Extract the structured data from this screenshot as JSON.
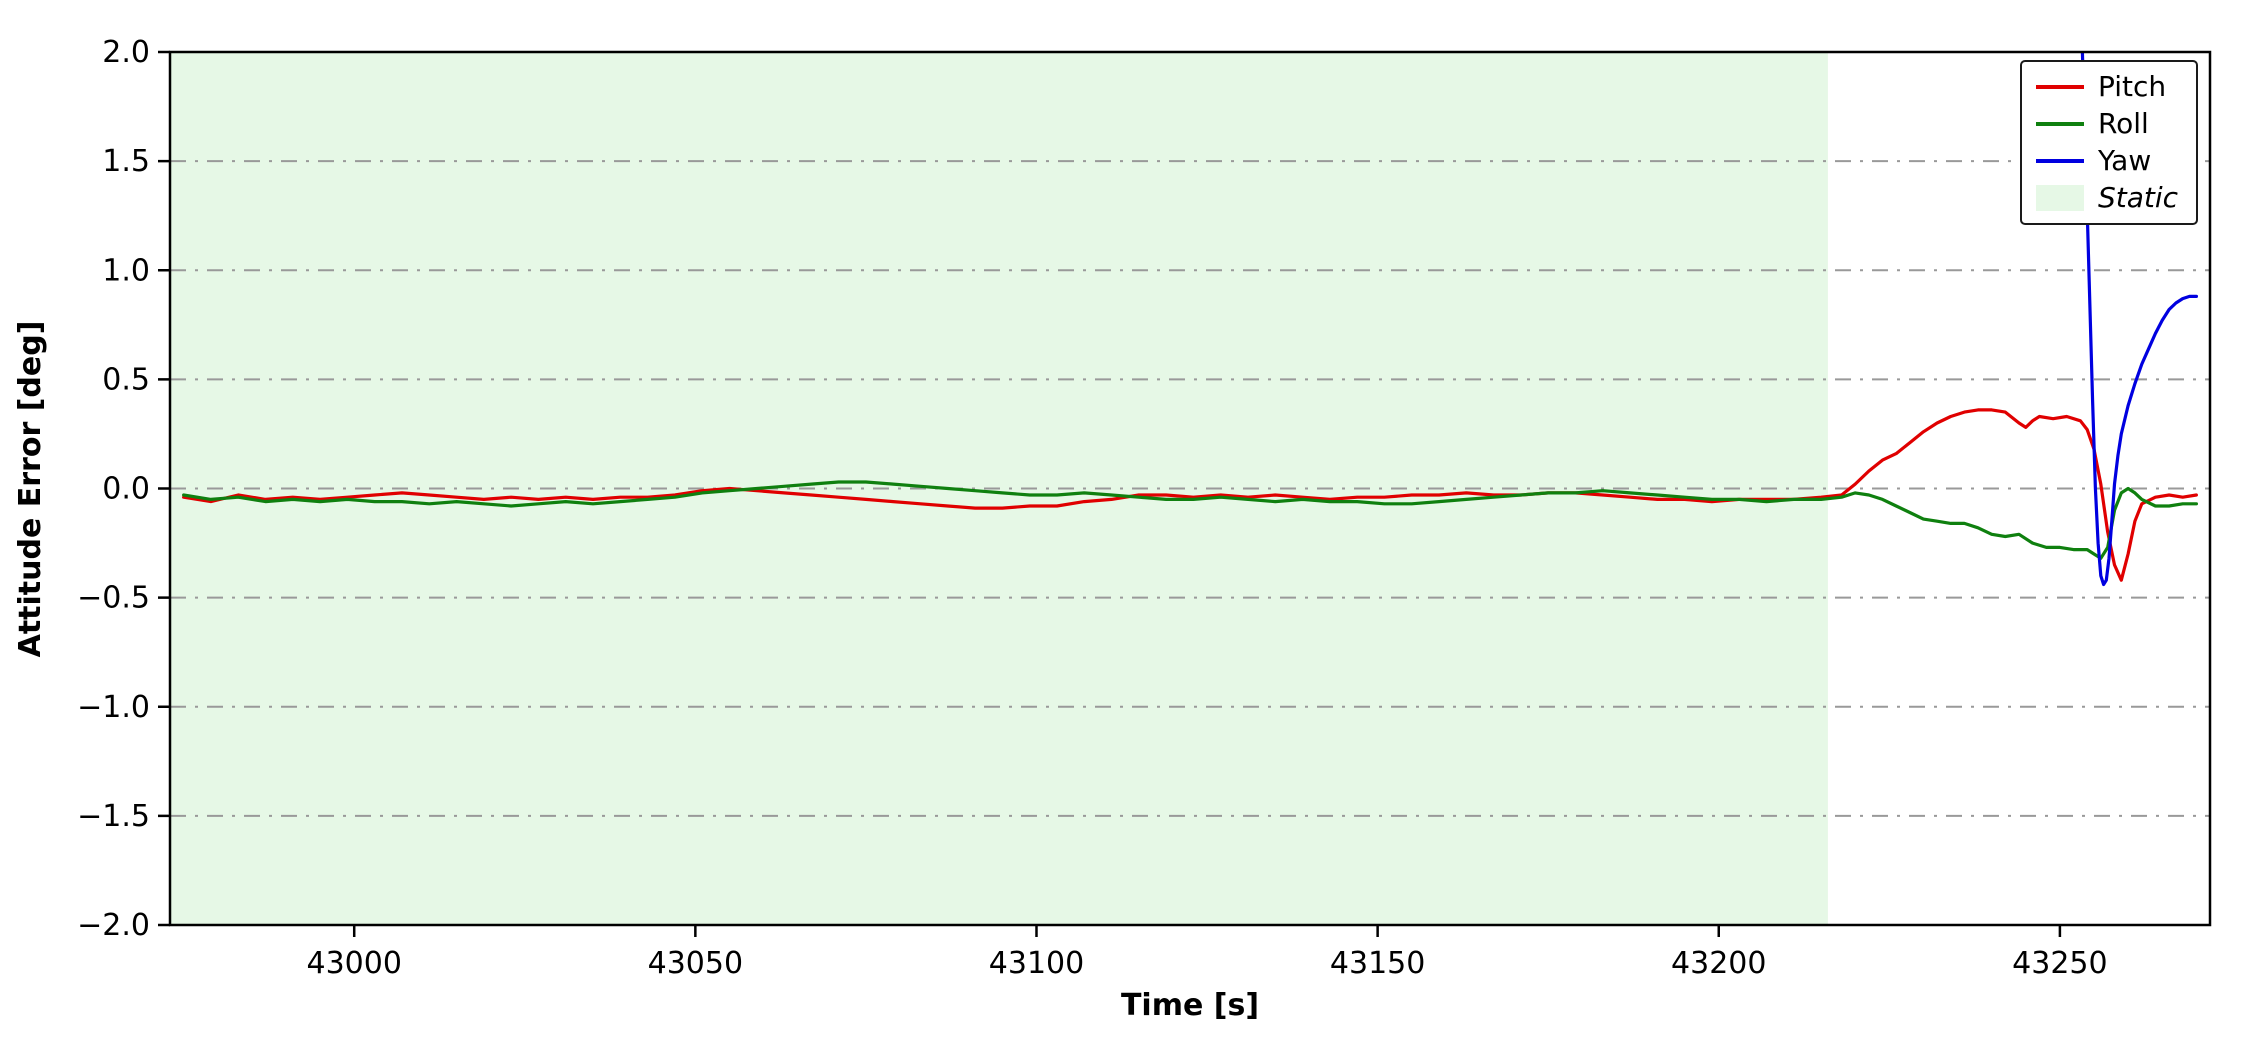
{
  "chart_data": {
    "type": "line",
    "title": "",
    "xlabel": "Time [s]",
    "ylabel": "Attitude Error [deg]",
    "xlim": [
      42973,
      43272
    ],
    "ylim": [
      -2.0,
      2.0
    ],
    "xticks": [
      43000,
      43050,
      43100,
      43150,
      43200,
      43250
    ],
    "xtick_labels": [
      "43000",
      "43050",
      "43100",
      "43150",
      "43200",
      "43250"
    ],
    "yticks": [
      -2.0,
      -1.5,
      -1.0,
      -0.5,
      0.0,
      0.5,
      1.0,
      1.5,
      2.0
    ],
    "ytick_labels": [
      "−2.0",
      "−1.5",
      "−1.0",
      "−0.5",
      "0.0",
      "0.5",
      "1.0",
      "1.5",
      "2.0"
    ],
    "grid": {
      "on": true,
      "axis": "y",
      "style": "dash-dot",
      "color": "#999999"
    },
    "legend": {
      "position": "upper right"
    },
    "frame_color": "#000000",
    "static_region": {
      "label": "Static",
      "x_start": 42973,
      "x_end": 43216,
      "color": "#e6f8e6"
    },
    "series": [
      {
        "name": "Pitch",
        "color": "#e00000",
        "x": [
          42975,
          42979,
          42983,
          42987,
          42991,
          42995,
          42999,
          43003,
          43007,
          43011,
          43015,
          43019,
          43023,
          43027,
          43031,
          43035,
          43039,
          43043,
          43047,
          43051,
          43055,
          43059,
          43063,
          43067,
          43071,
          43075,
          43079,
          43083,
          43087,
          43091,
          43095,
          43099,
          43103,
          43107,
          43111,
          43115,
          43119,
          43123,
          43127,
          43131,
          43135,
          43139,
          43143,
          43147,
          43151,
          43155,
          43159,
          43163,
          43167,
          43171,
          43175,
          43179,
          43183,
          43187,
          43191,
          43195,
          43199,
          43203,
          43207,
          43211,
          43215,
          43218,
          43220,
          43222,
          43224,
          43226,
          43228,
          43230,
          43232,
          43234,
          43236,
          43238,
          43240,
          43242,
          43244,
          43245,
          43246,
          43247,
          43249,
          43251,
          43253,
          43254,
          43255,
          43256,
          43257,
          43258,
          43259,
          43260,
          43261,
          43262,
          43264,
          43266,
          43268,
          43270
        ],
        "y": [
          -0.04,
          -0.06,
          -0.03,
          -0.05,
          -0.04,
          -0.05,
          -0.04,
          -0.03,
          -0.02,
          -0.03,
          -0.04,
          -0.05,
          -0.04,
          -0.05,
          -0.04,
          -0.05,
          -0.04,
          -0.04,
          -0.03,
          -0.01,
          0.0,
          -0.01,
          -0.02,
          -0.03,
          -0.04,
          -0.05,
          -0.06,
          -0.07,
          -0.08,
          -0.09,
          -0.09,
          -0.08,
          -0.08,
          -0.06,
          -0.05,
          -0.03,
          -0.03,
          -0.04,
          -0.03,
          -0.04,
          -0.03,
          -0.04,
          -0.05,
          -0.04,
          -0.04,
          -0.03,
          -0.03,
          -0.02,
          -0.03,
          -0.03,
          -0.02,
          -0.02,
          -0.03,
          -0.04,
          -0.05,
          -0.05,
          -0.06,
          -0.05,
          -0.05,
          -0.05,
          -0.04,
          -0.03,
          0.02,
          0.08,
          0.13,
          0.16,
          0.21,
          0.26,
          0.3,
          0.33,
          0.35,
          0.36,
          0.36,
          0.35,
          0.3,
          0.28,
          0.31,
          0.33,
          0.32,
          0.33,
          0.31,
          0.27,
          0.18,
          0.02,
          -0.2,
          -0.35,
          -0.42,
          -0.3,
          -0.15,
          -0.07,
          -0.04,
          -0.03,
          -0.04,
          -0.03
        ]
      },
      {
        "name": "Roll",
        "color": "#0f800f",
        "x": [
          42975,
          42979,
          42983,
          42987,
          42991,
          42995,
          42999,
          43003,
          43007,
          43011,
          43015,
          43019,
          43023,
          43027,
          43031,
          43035,
          43039,
          43043,
          43047,
          43051,
          43055,
          43059,
          43063,
          43067,
          43071,
          43075,
          43079,
          43083,
          43087,
          43091,
          43095,
          43099,
          43103,
          43107,
          43111,
          43115,
          43119,
          43123,
          43127,
          43131,
          43135,
          43139,
          43143,
          43147,
          43151,
          43155,
          43159,
          43163,
          43167,
          43171,
          43175,
          43179,
          43183,
          43187,
          43191,
          43195,
          43199,
          43203,
          43207,
          43211,
          43215,
          43218,
          43220,
          43222,
          43224,
          43226,
          43228,
          43230,
          43232,
          43234,
          43236,
          43238,
          43240,
          43242,
          43244,
          43246,
          43248,
          43250,
          43252,
          43254,
          43255,
          43256,
          43257,
          43258,
          43259,
          43260,
          43261,
          43262,
          43264,
          43266,
          43268,
          43270
        ],
        "y": [
          -0.03,
          -0.05,
          -0.04,
          -0.06,
          -0.05,
          -0.06,
          -0.05,
          -0.06,
          -0.06,
          -0.07,
          -0.06,
          -0.07,
          -0.08,
          -0.07,
          -0.06,
          -0.07,
          -0.06,
          -0.05,
          -0.04,
          -0.02,
          -0.01,
          0.0,
          0.01,
          0.02,
          0.03,
          0.03,
          0.02,
          0.01,
          0.0,
          -0.01,
          -0.02,
          -0.03,
          -0.03,
          -0.02,
          -0.03,
          -0.04,
          -0.05,
          -0.05,
          -0.04,
          -0.05,
          -0.06,
          -0.05,
          -0.06,
          -0.06,
          -0.07,
          -0.07,
          -0.06,
          -0.05,
          -0.04,
          -0.03,
          -0.02,
          -0.02,
          -0.01,
          -0.02,
          -0.03,
          -0.04,
          -0.05,
          -0.05,
          -0.06,
          -0.05,
          -0.05,
          -0.04,
          -0.02,
          -0.03,
          -0.05,
          -0.08,
          -0.11,
          -0.14,
          -0.15,
          -0.16,
          -0.16,
          -0.18,
          -0.21,
          -0.22,
          -0.21,
          -0.25,
          -0.27,
          -0.27,
          -0.28,
          -0.28,
          -0.3,
          -0.32,
          -0.27,
          -0.1,
          -0.02,
          0.0,
          -0.02,
          -0.05,
          -0.08,
          -0.08,
          -0.07,
          -0.07
        ]
      },
      {
        "name": "Yaw",
        "color": "#0000e0",
        "x": [
          43252.6,
          43253.2,
          43253.8,
          43254.3,
          43254.8,
          43255.2,
          43255.6,
          43256.0,
          43256.4,
          43256.8,
          43257.2,
          43257.6,
          43258.0,
          43258.5,
          43259.0,
          43260.0,
          43261.0,
          43262.0,
          43263.0,
          43264.0,
          43265.0,
          43266.0,
          43267.0,
          43268.0,
          43269.0,
          43270.0
        ],
        "y": [
          2.6,
          2.1,
          1.5,
          0.95,
          0.4,
          0.0,
          -0.25,
          -0.4,
          -0.44,
          -0.42,
          -0.32,
          -0.15,
          0.02,
          0.15,
          0.25,
          0.38,
          0.48,
          0.57,
          0.64,
          0.71,
          0.77,
          0.82,
          0.85,
          0.87,
          0.88,
          0.88
        ]
      }
    ]
  }
}
